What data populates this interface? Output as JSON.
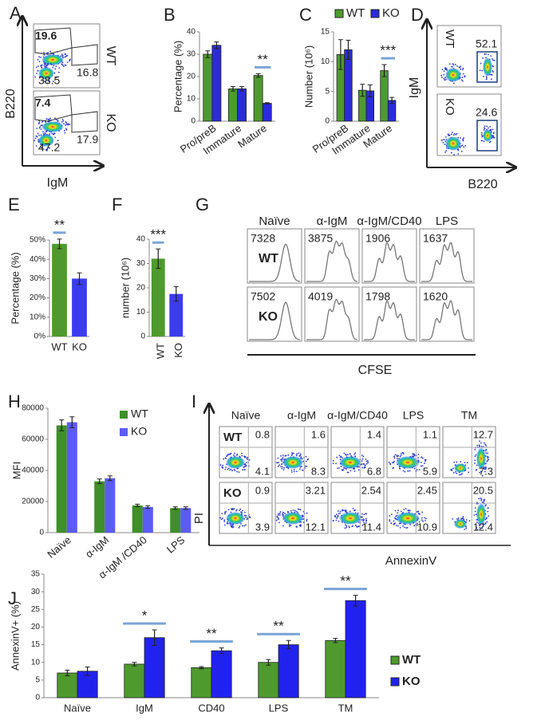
{
  "panel_labels": [
    "A",
    "B",
    "C",
    "D",
    "E",
    "F",
    "G",
    "H",
    "I",
    "J"
  ],
  "flow_A": {
    "x_label": "IgM",
    "y_label": "B220",
    "rows": [
      {
        "label": "WT",
        "gates": [
          19.6,
          16.8,
          38.5
        ]
      },
      {
        "label": "KO",
        "gates": [
          7.4,
          17.9,
          47.2
        ]
      }
    ]
  },
  "flow_D": {
    "x_label": "B220",
    "y_label": "IgM",
    "rows": [
      {
        "label": "WT",
        "value": 52.1
      },
      {
        "label": "KO",
        "value": 24.6
      }
    ]
  },
  "histograms_G": {
    "columns": [
      "Naïve",
      "α-IgM",
      "α-IgM/CD40",
      "LPS"
    ],
    "x_label": "CFSE",
    "rows": [
      {
        "label": "WT",
        "values": [
          7328,
          3875,
          1906,
          1637
        ]
      },
      {
        "label": "KO",
        "values": [
          7502,
          4019,
          1798,
          1620
        ]
      }
    ]
  },
  "apoptosis_I": {
    "columns": [
      "Naïve",
      "α-IgM",
      "α-IgM/CD40",
      "LPS",
      "TM"
    ],
    "x_label": "AnnexinV",
    "y_label": "PI",
    "rows": [
      {
        "label": "WT",
        "upper_right": [
          0.8,
          1.6,
          1.4,
          1.1,
          12.7
        ],
        "lower_right": [
          4.1,
          8.3,
          6.8,
          5.9,
          7.3
        ]
      },
      {
        "label": "KO",
        "upper_right": [
          0.9,
          3.21,
          2.54,
          2.45,
          20.5
        ],
        "lower_right": [
          3.9,
          12.1,
          11.4,
          10.9,
          12.4
        ]
      }
    ]
  },
  "chart_data": [
    {
      "type": "bar",
      "y_label": "Percentage (%)",
      "categories": [
        "Pro/preB",
        "Immature",
        "Mature"
      ],
      "series": [
        {
          "color": "#4e9a2e",
          "values": [
            30,
            14.5,
            20.5
          ],
          "errors": [
            1.5,
            1,
            0.8
          ]
        },
        {
          "color": "#2b2bd9",
          "values": [
            34,
            14.5,
            8
          ],
          "errors": [
            1.5,
            1,
            0.3
          ]
        }
      ],
      "edgecolor": "#222",
      "ylim": [
        0,
        40
      ],
      "yticks": [
        0,
        10,
        20,
        30,
        40
      ],
      "significance": [
        null,
        null,
        "**"
      ]
    },
    {
      "type": "bar",
      "y_label": "Number (10⁶)",
      "categories": [
        "Pro/preB",
        "Immature",
        "Mature"
      ],
      "series": [
        {
          "name": "WT",
          "color": "#4e9a2e",
          "values": [
            11.2,
            5.2,
            8.5
          ],
          "errors": [
            2.5,
            1,
            1
          ]
        },
        {
          "name": "KO",
          "color": "#2b2bd9",
          "values": [
            12,
            5.1,
            3.5
          ],
          "errors": [
            1.6,
            1,
            0.5
          ]
        }
      ],
      "edgecolor": "#222",
      "ylim": [
        0,
        15
      ],
      "yticks": [
        0,
        5,
        10,
        15
      ],
      "significance": [
        null,
        null,
        "***"
      ],
      "legend": "top"
    },
    {
      "type": "bar",
      "y_label": "Percentage (%)",
      "categories": [
        "WT",
        "KO"
      ],
      "values": [
        48,
        30
      ],
      "errors": [
        2.5,
        3
      ],
      "colors": [
        "#4e9a2e",
        "#3b3bf0"
      ],
      "ylim": [
        0,
        50
      ],
      "yticks": [
        {
          "value": 0,
          "label": "0%"
        },
        {
          "value": 10,
          "label": "10%"
        },
        {
          "value": 20,
          "label": "20%"
        },
        {
          "value": 30,
          "label": "30%"
        },
        {
          "value": 40,
          "label": "40%"
        },
        {
          "value": 50,
          "label": "50%"
        }
      ],
      "significance": [
        "**",
        null
      ]
    },
    {
      "type": "bar",
      "y_label": "number (10⁶)",
      "categories": [
        "WT",
        "KO"
      ],
      "values": [
        32,
        17.5
      ],
      "errors": [
        4,
        3
      ],
      "colors": [
        "#4e9a2e",
        "#3b3bf0"
      ],
      "ylim": [
        0,
        40
      ],
      "yticks": [
        0,
        10,
        20,
        30,
        40
      ],
      "significance": [
        "***",
        null
      ]
    },
    {
      "type": "bar",
      "y_label": "MFI",
      "categories": [
        "Naïve",
        "α-IgM",
        "α-IgM /CD40",
        "LPS"
      ],
      "series": [
        {
          "name": "WT",
          "color": "#3f8f2a",
          "values": [
            69000,
            33000,
            17500,
            15800
          ],
          "errors": [
            3500,
            1500,
            800,
            800
          ]
        },
        {
          "name": "KO",
          "color": "#5b5bf5",
          "values": [
            71000,
            35000,
            16500,
            15800
          ],
          "errors": [
            3500,
            1500,
            800,
            800
          ]
        }
      ],
      "ylim": [
        0,
        80000
      ],
      "yticks": [
        0,
        20000,
        40000,
        60000,
        80000
      ],
      "legend": "upper right"
    },
    {
      "type": "bar",
      "y_label": "AnnexinV+ (%)",
      "categories": [
        "Naïve",
        "IgM",
        "CD40",
        "LPS",
        "TM"
      ],
      "series": [
        {
          "name": "WT",
          "color": "#4e9a2e",
          "values": [
            7,
            9.5,
            8.5,
            10,
            16.2
          ],
          "errors": [
            0.8,
            0.5,
            0.3,
            0.8,
            0.6
          ]
        },
        {
          "name": "KO",
          "color": "#2222ee",
          "values": [
            7.5,
            17,
            13.3,
            15,
            27.5
          ],
          "errors": [
            1.2,
            2.2,
            0.8,
            1.2,
            1.5
          ]
        }
      ],
      "edgecolor": "#222",
      "ylim": [
        0,
        35
      ],
      "yticks": [
        0,
        5,
        10,
        15,
        20,
        25,
        30,
        35
      ],
      "significance": [
        null,
        "*",
        "**",
        "**",
        "**"
      ],
      "legend": "right"
    }
  ]
}
